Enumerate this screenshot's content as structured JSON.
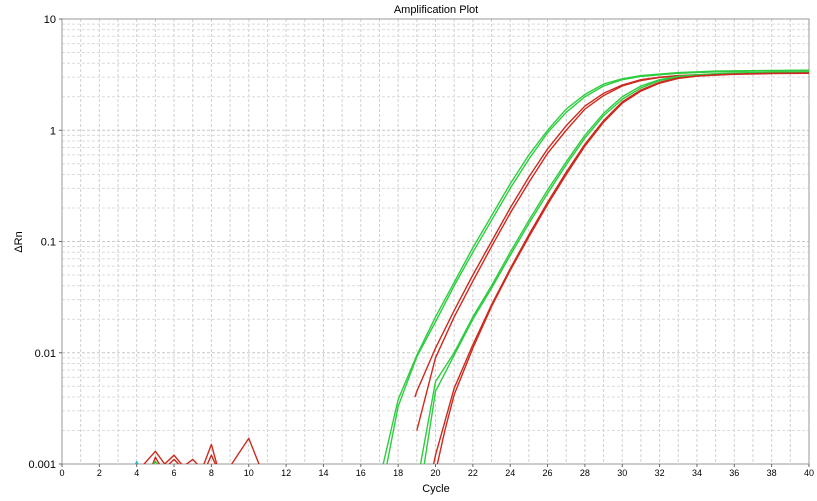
{
  "chart_data": {
    "type": "line",
    "title": "Amplification Plot",
    "xlabel": "Cycle",
    "ylabel": "ΔRn",
    "xlim": [
      0,
      40
    ],
    "ylim": [
      0.001,
      10
    ],
    "yscale": "log",
    "grid": true,
    "x_ticks": [
      "0",
      "2",
      "4",
      "6",
      "8",
      "10",
      "12",
      "14",
      "16",
      "18",
      "20",
      "22",
      "24",
      "26",
      "28",
      "30",
      "32",
      "34",
      "36",
      "38",
      "40"
    ],
    "y_ticks": [
      "0.001",
      "0.01",
      "0.1",
      "1",
      "10"
    ],
    "x_tick_values": [
      0,
      2,
      4,
      6,
      8,
      10,
      12,
      14,
      16,
      18,
      20,
      22,
      24,
      26,
      28,
      30,
      32,
      34,
      36,
      38,
      40
    ],
    "y_tick_values": [
      0.001,
      0.01,
      0.1,
      1,
      10
    ],
    "series": [
      {
        "color": "#2ecc40",
        "x": [
          17.2,
          18,
          19,
          20,
          21,
          22,
          23,
          24,
          25,
          26,
          27,
          28,
          29,
          30,
          31,
          32,
          33,
          34,
          35,
          36,
          38,
          40
        ],
        "y": [
          0.001,
          0.0038,
          0.0095,
          0.021,
          0.043,
          0.088,
          0.17,
          0.33,
          0.6,
          1.0,
          1.55,
          2.1,
          2.6,
          2.9,
          3.1,
          3.2,
          3.3,
          3.35,
          3.4,
          3.42,
          3.45,
          3.47
        ]
      },
      {
        "color": "#2ecc40",
        "x": [
          17.4,
          18,
          19,
          20,
          21,
          22,
          23,
          24,
          25,
          26,
          27,
          28,
          29,
          30,
          31,
          32,
          33,
          34,
          35,
          36,
          38,
          40
        ],
        "y": [
          0.001,
          0.0033,
          0.0092,
          0.019,
          0.04,
          0.08,
          0.155,
          0.3,
          0.55,
          0.95,
          1.45,
          2.0,
          2.5,
          2.85,
          3.05,
          3.15,
          3.25,
          3.3,
          3.35,
          3.38,
          3.42,
          3.44
        ]
      },
      {
        "color": "#cc2a1e",
        "x": [
          18.9,
          19,
          20,
          21,
          22,
          23,
          24,
          25,
          26,
          27,
          28,
          29,
          30,
          31,
          32,
          33,
          34,
          35,
          36,
          38,
          40
        ],
        "y": [
          0.004,
          0.0045,
          0.011,
          0.024,
          0.05,
          0.1,
          0.2,
          0.38,
          0.68,
          1.1,
          1.65,
          2.15,
          2.55,
          2.85,
          3.0,
          3.1,
          3.15,
          3.2,
          3.23,
          3.27,
          3.3
        ]
      },
      {
        "color": "#cc2a1e",
        "x": [
          19,
          20,
          21,
          22,
          23,
          24,
          25,
          26,
          27,
          28,
          29,
          30,
          31,
          32,
          33,
          34,
          35,
          36,
          38,
          40
        ],
        "y": [
          0.002,
          0.009,
          0.021,
          0.044,
          0.09,
          0.18,
          0.34,
          0.62,
          1.0,
          1.55,
          2.05,
          2.5,
          2.8,
          2.98,
          3.08,
          3.14,
          3.18,
          3.21,
          3.25,
          3.28
        ]
      },
      {
        "color": "#2ecc40",
        "x": [
          19.2,
          20,
          21,
          22,
          23,
          24,
          25,
          26,
          27,
          28,
          29,
          30,
          31,
          32,
          33,
          34,
          35,
          36,
          38,
          40
        ],
        "y": [
          0.001,
          0.0055,
          0.01,
          0.021,
          0.04,
          0.08,
          0.155,
          0.29,
          0.52,
          0.9,
          1.42,
          2.0,
          2.5,
          2.85,
          3.05,
          3.15,
          3.22,
          3.27,
          3.32,
          3.35
        ]
      },
      {
        "color": "#2ecc40",
        "x": [
          19.4,
          20,
          21,
          22,
          23,
          24,
          25,
          26,
          27,
          28,
          29,
          30,
          31,
          32,
          33,
          34,
          35,
          36,
          38,
          40
        ],
        "y": [
          0.001,
          0.0045,
          0.0095,
          0.02,
          0.038,
          0.075,
          0.145,
          0.27,
          0.49,
          0.85,
          1.35,
          1.9,
          2.4,
          2.8,
          3.0,
          3.12,
          3.2,
          3.25,
          3.3,
          3.33
        ]
      },
      {
        "color": "#cc2a1e",
        "x": [
          19.9,
          20,
          20.5,
          21,
          22,
          23,
          24,
          25,
          26,
          27,
          28,
          29,
          30,
          31,
          32,
          33,
          34,
          35,
          36,
          38,
          40
        ],
        "y": [
          0.001,
          0.0012,
          0.0024,
          0.0048,
          0.0118,
          0.027,
          0.057,
          0.115,
          0.225,
          0.42,
          0.75,
          1.22,
          1.8,
          2.3,
          2.7,
          2.95,
          3.08,
          3.15,
          3.2,
          3.25,
          3.27
        ]
      },
      {
        "color": "#cc2a1e",
        "x": [
          20.1,
          20.5,
          21,
          22,
          23,
          24,
          25,
          26,
          27,
          28,
          29,
          30,
          31,
          32,
          33,
          34,
          35,
          36,
          38,
          40
        ],
        "y": [
          0.001,
          0.002,
          0.0042,
          0.011,
          0.026,
          0.055,
          0.11,
          0.215,
          0.4,
          0.72,
          1.18,
          1.75,
          2.25,
          2.65,
          2.92,
          3.06,
          3.13,
          3.18,
          3.23,
          3.25
        ]
      },
      {
        "color": "#cc2a1e",
        "x": [
          3.9,
          4.4,
          5,
          5.5,
          6,
          6.5,
          7,
          7.5,
          8,
          8.4,
          9,
          10,
          10.6
        ],
        "y": [
          0.00085,
          0.001,
          0.0013,
          0.001,
          0.0012,
          0.00095,
          0.0011,
          0.0009,
          0.0015,
          0.00085,
          0.00095,
          0.0017,
          0.00095
        ]
      },
      {
        "color": "#cc2a1e",
        "x": [
          4.7,
          5,
          5.4,
          6,
          6.5,
          7.6,
          8,
          8.4
        ],
        "y": [
          0.00085,
          0.00115,
          0.00088,
          0.0011,
          0.0009,
          0.00085,
          0.0012,
          0.00085
        ]
      },
      {
        "color": "#2ecc40",
        "x": [
          4.6,
          5,
          5.4,
          6,
          6.4
        ],
        "y": [
          0.00085,
          0.00105,
          0.00088,
          0.001,
          0.00088
        ]
      },
      {
        "color": "#22bbcc",
        "x": [
          3.8,
          4,
          4.2
        ],
        "y": [
          0.0009,
          0.00105,
          0.0009
        ]
      }
    ]
  }
}
